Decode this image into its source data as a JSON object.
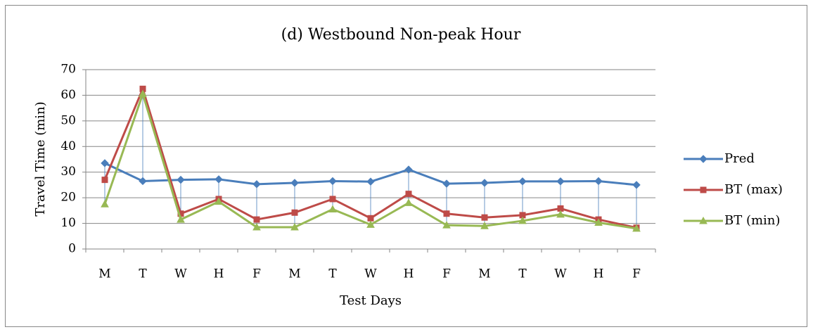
{
  "chart_data": {
    "type": "line",
    "title": "(d) Westbound Non-peak Hour",
    "x_label": "Test Days",
    "y_label": "Travel Time (min)",
    "categories": [
      "M",
      "T",
      "W",
      "H",
      "F",
      "M",
      "T",
      "W",
      "H",
      "F",
      "M",
      "T",
      "W",
      "H",
      "F"
    ],
    "series": [
      {
        "name": "Pred",
        "color": "#4a7ebb",
        "marker": "diamond",
        "values": [
          33.5,
          26.5,
          27,
          27.2,
          25.3,
          25.8,
          26.5,
          26.3,
          31,
          25.5,
          25.8,
          26.4,
          26.4,
          26.5,
          25
        ]
      },
      {
        "name": "BT (max)",
        "color": "#be4b48",
        "marker": "square",
        "values": [
          27,
          62.5,
          13.8,
          19.5,
          11.5,
          14.2,
          19.5,
          12,
          21.5,
          13.8,
          12.3,
          13.2,
          15.8,
          11.5,
          8.3
        ]
      },
      {
        "name": "BT (min)",
        "color": "#98b954",
        "marker": "triangle",
        "values": [
          17.5,
          60.5,
          11.5,
          18.5,
          8.5,
          8.5,
          15.5,
          9.5,
          18,
          9.3,
          9,
          11,
          13.5,
          10.3,
          8
        ]
      }
    ],
    "ylim": [
      0,
      70
    ],
    "yticks": [
      0,
      10,
      20,
      30,
      40,
      50,
      60,
      70
    ],
    "grid": true,
    "high_low_lines": true,
    "legend": "right"
  }
}
